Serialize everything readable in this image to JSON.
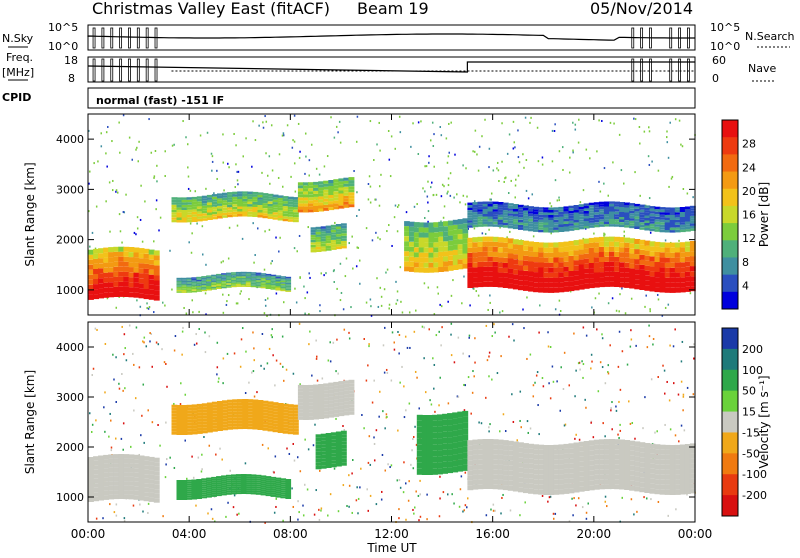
{
  "header": {
    "title": "Christmas Valley East (fitACF)",
    "beam": "Beam 19",
    "date": "05/Nov/2014"
  },
  "summary_panels": {
    "nsky_label": "N.Sky",
    "nsearch_label": "N.Search",
    "nsky_tick_high": "10^5",
    "nsky_tick_low": "10^0",
    "nsearch_tick_high": "10^5",
    "nsearch_tick_low": "10^0",
    "freq_label_1": "Freq.",
    "freq_label_2": "[MHz]",
    "freq_tick_high": "18",
    "freq_tick_low": "8",
    "nave_label": "Nave",
    "nave_tick_high": "60",
    "nave_tick_low": "0",
    "cpid_label": "CPID",
    "cpid_value": "normal (fast) -151 IF"
  },
  "chart_data": [
    {
      "type": "heatmap",
      "name": "Power",
      "x": [
        "00:00",
        "04:00",
        "08:00",
        "12:00",
        "16:00",
        "20:00",
        "00:00"
      ],
      "xlabel": "Time UT",
      "ylabel": "Slant Range [km]",
      "y_ticks": [
        "1000",
        "2000",
        "3000",
        "4000"
      ],
      "ylim": [
        500,
        4500
      ],
      "colorbar_label": "Power [dB]",
      "colorbar_ticks": [
        "4",
        "8",
        "12",
        "16",
        "20",
        "24",
        "28"
      ],
      "colorbar_colors": [
        "#0000dd",
        "#2a4fbf",
        "#3f8fa0",
        "#4fb07a",
        "#7ccc3c",
        "#c8d82a",
        "#f2c21a",
        "#f39a12",
        "#f26a10",
        "#ee3a10",
        "#e81010"
      ],
      "bands": [
        {
          "t_start": 0.0,
          "t_end": 2.8,
          "range_start": 800,
          "range_end": 1800,
          "level": 0.85
        },
        {
          "t_start": 3.3,
          "t_end": 8.3,
          "range_start": 2400,
          "range_end": 2900,
          "level": 0.45
        },
        {
          "t_start": 3.5,
          "t_end": 8.0,
          "range_start": 1000,
          "range_end": 1300,
          "level": 0.35
        },
        {
          "t_start": 8.3,
          "t_end": 10.5,
          "range_start": 2600,
          "range_end": 3200,
          "level": 0.55
        },
        {
          "t_start": 8.8,
          "t_end": 10.2,
          "range_start": 1800,
          "range_end": 2300,
          "level": 0.4
        },
        {
          "t_start": 12.5,
          "t_end": 15.0,
          "range_start": 1400,
          "range_end": 2400,
          "level": 0.5
        },
        {
          "t_start": 15.0,
          "t_end": 24.0,
          "range_start": 1000,
          "range_end": 2000,
          "level": 0.9
        },
        {
          "t_start": 15.0,
          "t_end": 24.0,
          "range_start": 2200,
          "range_end": 2700,
          "level": 0.2
        }
      ]
    },
    {
      "type": "heatmap",
      "name": "Velocity",
      "x": [
        "00:00",
        "04:00",
        "08:00",
        "12:00",
        "16:00",
        "20:00",
        "00:00"
      ],
      "xlabel": "Time UT",
      "ylabel": "Slant Range [km]",
      "y_ticks": [
        "1000",
        "2000",
        "3000",
        "4000"
      ],
      "ylim": [
        500,
        4500
      ],
      "colorbar_label": "Velocity [m s⁻¹]",
      "colorbar_ticks": [
        "200",
        "100",
        "50",
        "15",
        "-15",
        "-50",
        "-100",
        "-200"
      ],
      "colorbar_colors": [
        "#1a3aa8",
        "#1f7a7a",
        "#2fa84a",
        "#6ad23a",
        "#c9c9c1",
        "#f0a81a",
        "#f07a10",
        "#e83a10",
        "#d81010"
      ],
      "bands": [
        {
          "t_start": 0.0,
          "t_end": 2.8,
          "range_start": 900,
          "range_end": 1800,
          "value": 0
        },
        {
          "t_start": 3.3,
          "t_end": 8.3,
          "range_start": 2300,
          "range_end": 2900,
          "value": -30
        },
        {
          "t_start": 3.5,
          "t_end": 8.0,
          "range_start": 1000,
          "range_end": 1400,
          "value": 60
        },
        {
          "t_start": 8.3,
          "t_end": 10.5,
          "range_start": 2600,
          "range_end": 3300,
          "value": 0
        },
        {
          "t_start": 9.0,
          "t_end": 10.2,
          "range_start": 1600,
          "range_end": 2300,
          "value": 80
        },
        {
          "t_start": 13.0,
          "t_end": 15.0,
          "range_start": 1500,
          "range_end": 2700,
          "value": 60
        },
        {
          "t_start": 15.0,
          "t_end": 24.0,
          "range_start": 1100,
          "range_end": 2100,
          "value": 0
        }
      ]
    }
  ]
}
